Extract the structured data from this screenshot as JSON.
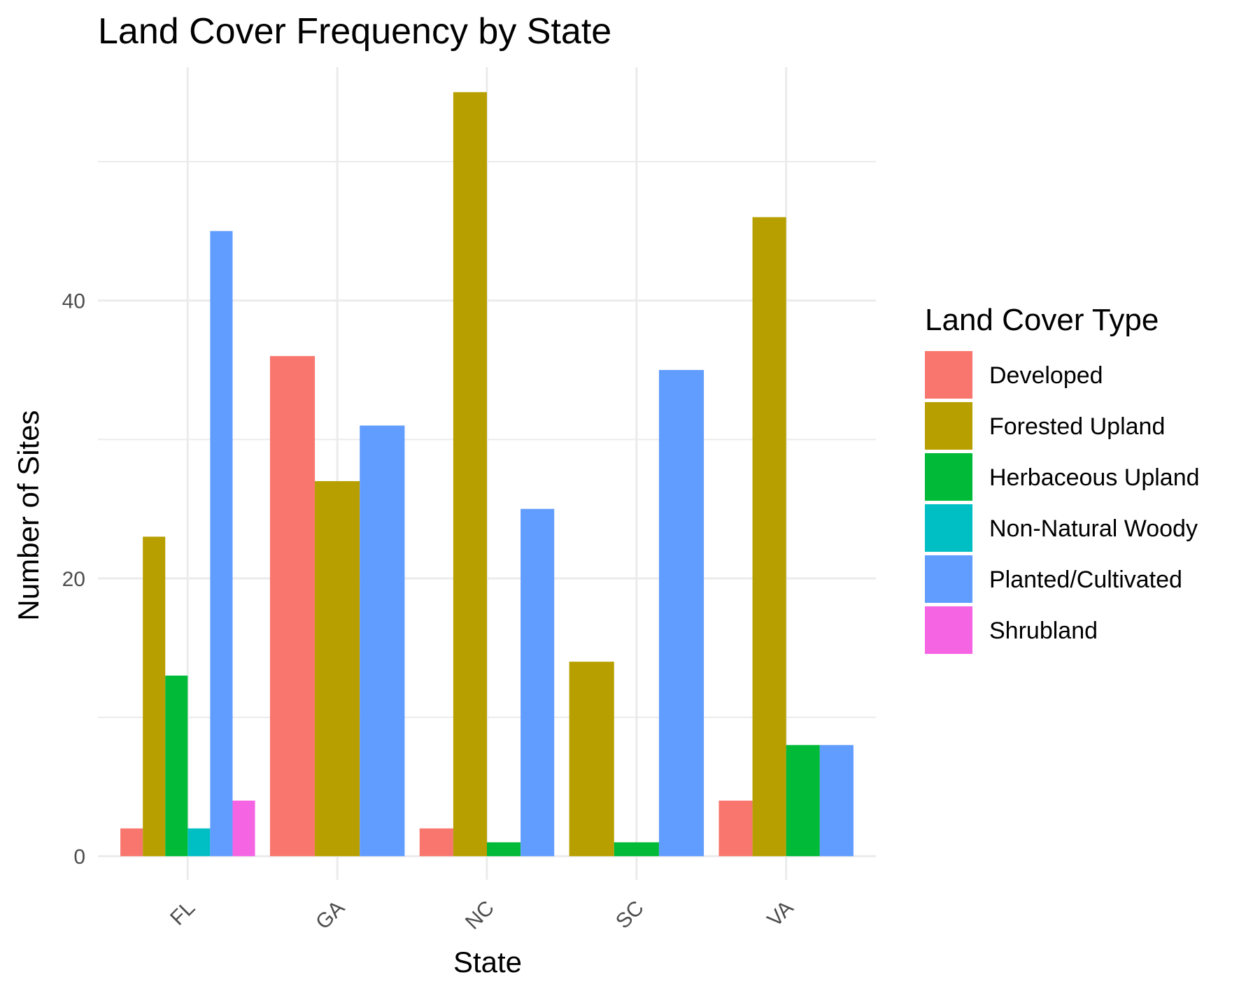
{
  "chart_data": {
    "type": "bar",
    "title": "Land Cover Frequency by State",
    "xlabel": "State",
    "ylabel": "Number of Sites",
    "categories": [
      "FL",
      "GA",
      "NC",
      "SC",
      "VA"
    ],
    "ylim": [
      -1.7,
      56.8
    ],
    "yticks": [
      0,
      20,
      40
    ],
    "grid": true,
    "legend": {
      "title": "Land Cover Type",
      "position": "right"
    },
    "series": [
      {
        "name": "Developed",
        "color": "#F8766D",
        "values": [
          2,
          36,
          2,
          null,
          4
        ]
      },
      {
        "name": "Forested Upland",
        "color": "#B79F00",
        "values": [
          23,
          27,
          55,
          14,
          46
        ]
      },
      {
        "name": "Herbaceous Upland",
        "color": "#00BA38",
        "values": [
          13,
          null,
          1,
          1,
          8
        ]
      },
      {
        "name": "Non-Natural Woody",
        "color": "#00BFC4",
        "values": [
          2,
          null,
          null,
          null,
          null
        ]
      },
      {
        "name": "Planted/Cultivated",
        "color": "#619CFF",
        "values": [
          45,
          31,
          25,
          35,
          8
        ]
      },
      {
        "name": "Shrubland",
        "color": "#F564E3",
        "values": [
          4,
          null,
          null,
          null,
          null
        ]
      }
    ]
  }
}
